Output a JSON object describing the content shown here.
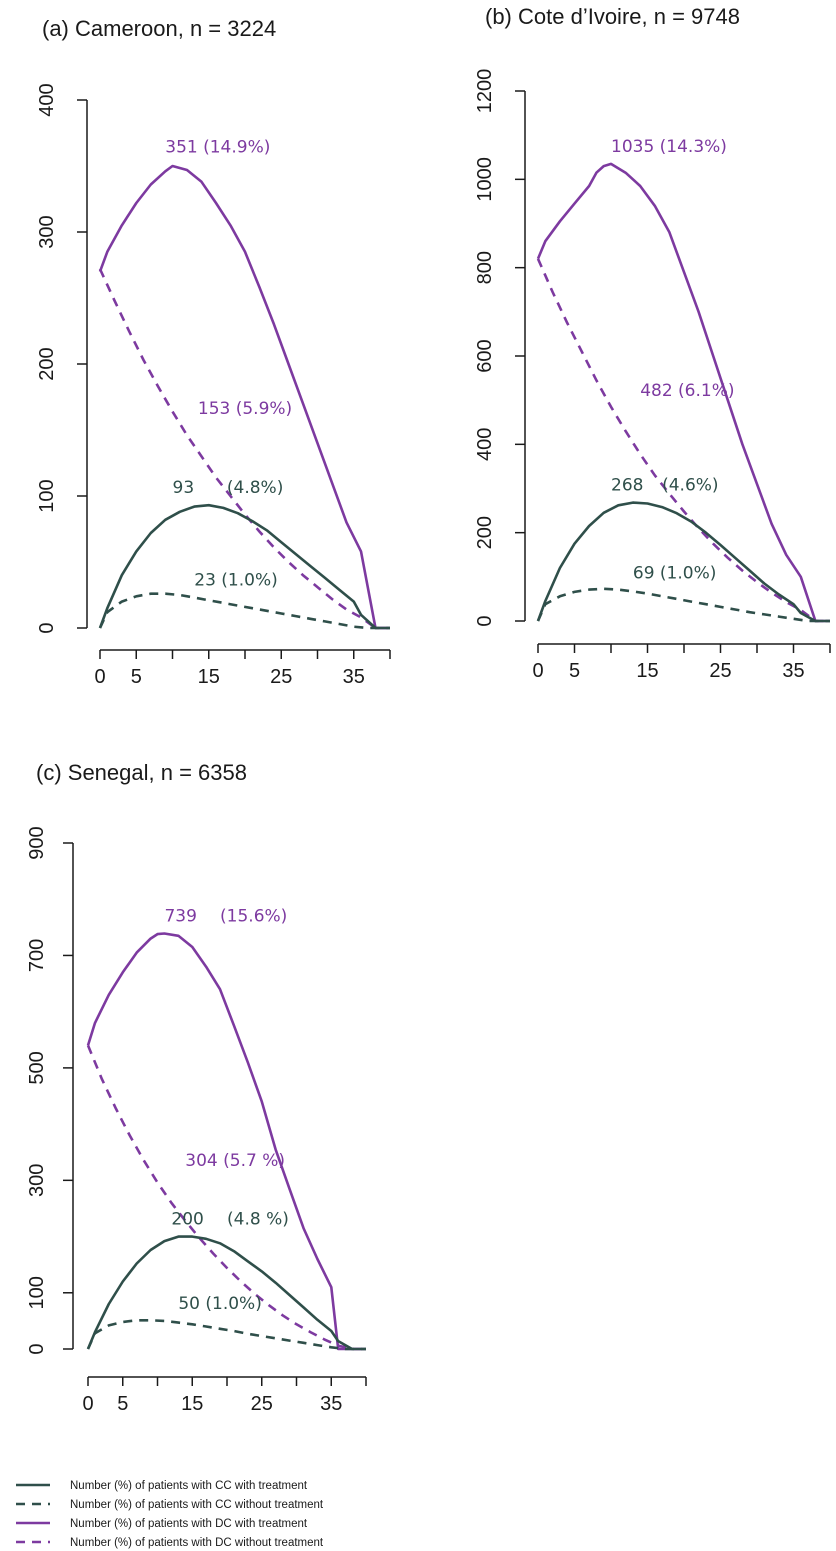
{
  "colors": {
    "cc": "#2f4f4a",
    "dc": "#7d3aa0"
  },
  "legend": [
    {
      "label": "Number (%) of patients with CC with treatment",
      "series": "cc_with",
      "dashed": false
    },
    {
      "label": "Number (%) of patients with CC without treatment",
      "series": "cc_without",
      "dashed": true
    },
    {
      "label": "Number (%) of patients with DC with treatment",
      "series": "dc_with",
      "dashed": false
    },
    {
      "label": "Number (%) of patients with DC without treatment",
      "series": "dc_without",
      "dashed": true
    }
  ],
  "chart_data": [
    {
      "type": "line",
      "title": "(a) Cameroon, n = 3224",
      "xlabel": "",
      "ylabel": "",
      "xlim": [
        0,
        40
      ],
      "ylim": [
        0,
        400
      ],
      "xticks": [
        "0",
        "5",
        "15",
        "25",
        "35"
      ],
      "yticks": [
        "0",
        "100",
        "200",
        "300",
        "400"
      ],
      "series": [
        {
          "key": "dc_with",
          "x": [
            0,
            1,
            3,
            5,
            7,
            9,
            10,
            12,
            14,
            16,
            18,
            20,
            22,
            24,
            26,
            28,
            30,
            32,
            34,
            36,
            38,
            40
          ],
          "values": [
            270,
            285,
            305,
            322,
            336,
            346,
            350,
            347,
            338,
            322,
            305,
            285,
            258,
            230,
            200,
            170,
            140,
            110,
            80,
            58,
            0,
            0
          ]
        },
        {
          "key": "dc_without",
          "x": [
            0,
            2,
            4,
            6,
            8,
            10,
            12,
            14,
            16,
            18,
            20,
            22,
            24,
            26,
            28,
            30,
            32,
            34,
            36,
            38,
            40
          ],
          "values": [
            272,
            248,
            225,
            203,
            183,
            164,
            146,
            130,
            114,
            100,
            86,
            73,
            61,
            50,
            40,
            31,
            22,
            14,
            8,
            0,
            0
          ]
        },
        {
          "key": "cc_with",
          "x": [
            0,
            1,
            3,
            5,
            7,
            9,
            11,
            13,
            15,
            17,
            19,
            21,
            23,
            25,
            27,
            29,
            31,
            33,
            35,
            36,
            38,
            40
          ],
          "values": [
            0,
            15,
            40,
            58,
            72,
            82,
            88,
            92,
            93,
            91,
            87,
            81,
            74,
            65,
            56,
            47,
            38,
            29,
            20,
            10,
            0,
            0
          ]
        },
        {
          "key": "cc_without",
          "x": [
            0,
            1,
            3,
            5,
            7,
            9,
            11,
            13,
            15,
            17,
            19,
            21,
            23,
            25,
            27,
            29,
            31,
            33,
            35,
            37,
            40
          ],
          "values": [
            0,
            12,
            20,
            24,
            26,
            26,
            25,
            23,
            21,
            19,
            17,
            15,
            13,
            11,
            9,
            7,
            5,
            3,
            1,
            0,
            0
          ]
        }
      ],
      "annotations": [
        {
          "series": "dc_with",
          "text": "351 (14.9%)",
          "x": 9,
          "y": 351
        },
        {
          "series": "dc_without",
          "text": "153 (5.9%)",
          "x": 13.5,
          "y": 153
        },
        {
          "series": "cc_with",
          "text": "93",
          "x": 10,
          "y": 93
        },
        {
          "series": "cc_with",
          "text": "(4.8%)",
          "x": 17.5,
          "y": 93
        },
        {
          "series": "cc_without",
          "text": "23 (1.0%)",
          "x": 13,
          "y": 23
        }
      ]
    },
    {
      "type": "line",
      "title": "(b) Cote d’Ivoire, n = 9748",
      "xlabel": "",
      "ylabel": "",
      "xlim": [
        0,
        40
      ],
      "ylim": [
        0,
        1200
      ],
      "xticks": [
        "0",
        "5",
        "15",
        "25",
        "35"
      ],
      "yticks": [
        "0",
        "200",
        "400",
        "600",
        "800",
        "1000",
        "1200"
      ],
      "series": [
        {
          "key": "dc_with",
          "x": [
            0,
            1,
            3,
            5,
            7,
            8,
            9,
            10,
            12,
            14,
            16,
            18,
            20,
            22,
            24,
            26,
            28,
            30,
            32,
            34,
            36,
            38,
            40
          ],
          "values": [
            820,
            860,
            905,
            945,
            985,
            1015,
            1030,
            1035,
            1015,
            985,
            940,
            880,
            790,
            700,
            600,
            500,
            400,
            310,
            220,
            150,
            100,
            0,
            0
          ]
        },
        {
          "key": "dc_without",
          "x": [
            0,
            2,
            4,
            6,
            8,
            10,
            12,
            14,
            16,
            18,
            20,
            22,
            24,
            26,
            28,
            30,
            32,
            34,
            36,
            38,
            40
          ],
          "values": [
            820,
            745,
            675,
            610,
            545,
            485,
            430,
            378,
            330,
            288,
            248,
            210,
            175,
            143,
            114,
            88,
            64,
            43,
            25,
            0,
            0
          ]
        },
        {
          "key": "cc_with",
          "x": [
            0,
            1,
            3,
            5,
            7,
            9,
            11,
            13,
            15,
            17,
            19,
            21,
            23,
            25,
            27,
            29,
            31,
            33,
            35,
            36,
            38,
            40
          ],
          "values": [
            0,
            45,
            120,
            175,
            215,
            245,
            262,
            268,
            266,
            258,
            244,
            225,
            200,
            172,
            143,
            114,
            85,
            60,
            38,
            18,
            0,
            0
          ]
        },
        {
          "key": "cc_without",
          "x": [
            0,
            1,
            3,
            5,
            7,
            9,
            11,
            13,
            15,
            17,
            19,
            21,
            23,
            25,
            27,
            29,
            31,
            33,
            35,
            37,
            40
          ],
          "values": [
            0,
            38,
            56,
            66,
            71,
            73,
            71,
            67,
            62,
            56,
            50,
            44,
            38,
            32,
            26,
            20,
            15,
            10,
            5,
            0,
            0
          ]
        }
      ],
      "annotations": [
        {
          "series": "dc_with",
          "text": "1035 (14.3%)",
          "x": 10,
          "y": 1035
        },
        {
          "series": "dc_without",
          "text": "482 (6.1%)",
          "x": 14,
          "y": 482
        },
        {
          "series": "cc_with",
          "text": "268",
          "x": 10,
          "y": 268
        },
        {
          "series": "cc_with",
          "text": "(4.6%)",
          "x": 17,
          "y": 268
        },
        {
          "series": "cc_without",
          "text": "69 (1.0%)",
          "x": 13,
          "y": 69
        }
      ]
    },
    {
      "type": "line",
      "title": "(c) Senegal, n = 6358",
      "xlabel": "",
      "ylabel": "",
      "xlim": [
        0,
        40
      ],
      "ylim": [
        0,
        900
      ],
      "xticks": [
        "0",
        "5",
        "15",
        "25",
        "35"
      ],
      "yticks": [
        "0",
        "100",
        "300",
        "500",
        "700",
        "900"
      ],
      "series": [
        {
          "key": "dc_with",
          "x": [
            0,
            1,
            3,
            5,
            7,
            9,
            10,
            11,
            13,
            15,
            17,
            19,
            21,
            23,
            25,
            27,
            29,
            31,
            33,
            35,
            36,
            38,
            40
          ],
          "values": [
            540,
            580,
            630,
            670,
            705,
            730,
            738,
            739,
            735,
            715,
            680,
            640,
            575,
            510,
            440,
            355,
            285,
            215,
            160,
            110,
            0,
            0,
            0
          ]
        },
        {
          "key": "dc_without",
          "x": [
            0,
            2,
            4,
            6,
            8,
            10,
            12,
            14,
            16,
            18,
            20,
            22,
            24,
            26,
            28,
            30,
            32,
            34,
            36,
            38,
            40
          ],
          "values": [
            540,
            480,
            428,
            380,
            336,
            296,
            260,
            228,
            198,
            170,
            144,
            120,
            98,
            78,
            60,
            44,
            30,
            17,
            6,
            0,
            0
          ]
        },
        {
          "key": "cc_with",
          "x": [
            0,
            1,
            3,
            5,
            7,
            9,
            11,
            13,
            15,
            17,
            19,
            21,
            23,
            25,
            27,
            29,
            31,
            33,
            35,
            36,
            38,
            40
          ],
          "values": [
            0,
            30,
            80,
            120,
            152,
            176,
            192,
            200,
            200,
            196,
            188,
            174,
            156,
            138,
            118,
            96,
            74,
            52,
            32,
            14,
            0,
            0
          ]
        },
        {
          "key": "cc_without",
          "x": [
            0,
            1,
            3,
            5,
            7,
            9,
            11,
            13,
            15,
            17,
            19,
            21,
            23,
            25,
            27,
            29,
            31,
            33,
            35,
            37,
            40
          ],
          "values": [
            0,
            28,
            42,
            48,
            51,
            51,
            50,
            47,
            44,
            40,
            36,
            32,
            27,
            23,
            19,
            15,
            11,
            7,
            3,
            0,
            0
          ]
        }
      ],
      "annotations": [
        {
          "series": "dc_with",
          "text": "739",
          "x": 11,
          "y": 739
        },
        {
          "series": "dc_with",
          "text": "(15.6%)",
          "x": 19,
          "y": 739
        },
        {
          "series": "dc_without",
          "text": "304 (5.7 %)",
          "x": 14,
          "y": 304
        },
        {
          "series": "cc_with",
          "text": "200",
          "x": 12,
          "y": 200
        },
        {
          "series": "cc_with",
          "text": "(4.8 %)",
          "x": 20,
          "y": 200
        },
        {
          "series": "cc_without",
          "text": "50 (1.0%)",
          "x": 13,
          "y": 50
        }
      ]
    }
  ]
}
